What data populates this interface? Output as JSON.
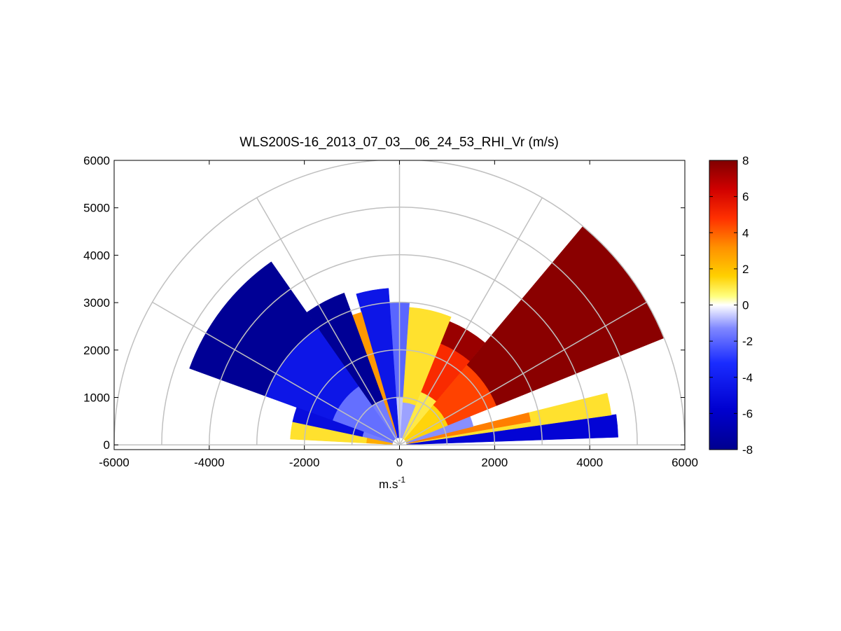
{
  "chart_data": {
    "type": "heatmap",
    "subtype": "polar-rhi-scan",
    "title": "WLS200S-16_2013_07_03__06_24_53_RHI_Vr (m/s)",
    "xlabel": "m.s",
    "xlabel_superscript": "-1",
    "ylabel": "",
    "xlim": [
      -6000,
      6000
    ],
    "ylim": [
      -100,
      6000
    ],
    "xticks": [
      "-6000",
      "-4000",
      "-2000",
      "0",
      "2000",
      "4000",
      "6000"
    ],
    "yticks": [
      "0",
      "1000",
      "2000",
      "3000",
      "4000",
      "5000",
      "6000"
    ],
    "polar_grid": {
      "ranges": [
        1000,
        2000,
        3000,
        4000,
        5000,
        6000
      ],
      "spokes_deg": [
        0,
        30,
        60,
        90,
        120,
        150,
        180
      ],
      "color": "#c0c0c0"
    },
    "colorbar": {
      "min": -8,
      "max": 8,
      "ticks": [
        "8",
        "6",
        "4",
        "2",
        "0",
        "-2",
        "-4",
        "-6",
        "-8"
      ],
      "colormap": "blue-white-red"
    },
    "sectors": [
      {
        "az_from": 2,
        "az_to": 8,
        "r_from": 150,
        "r_to": 4600,
        "v": -5.5
      },
      {
        "az_from": 8,
        "az_to": 14,
        "r_from": 150,
        "r_to": 4500,
        "v": 1.2
      },
      {
        "az_from": 10,
        "az_to": 14,
        "r_from": 200,
        "r_to": 2800,
        "v": 3.5
      },
      {
        "az_from": 14,
        "az_to": 22,
        "r_from": 150,
        "r_to": 1600,
        "v": -1.2
      },
      {
        "az_from": 22,
        "az_to": 50,
        "r_from": 150,
        "r_to": 1100,
        "v": 1.5
      },
      {
        "az_from": 22,
        "az_to": 50,
        "r_from": 1100,
        "r_to": 2200,
        "v": 4.5
      },
      {
        "az_from": 22,
        "az_to": 50,
        "r_from": 2200,
        "r_to": 6000,
        "v": 7.8
      },
      {
        "az_from": 50,
        "az_to": 68,
        "r_from": 150,
        "r_to": 1200,
        "v": 1.0
      },
      {
        "az_from": 50,
        "az_to": 68,
        "r_from": 1200,
        "r_to": 2300,
        "v": 5.0
      },
      {
        "az_from": 50,
        "az_to": 68,
        "r_from": 2300,
        "r_to": 2800,
        "v": 7.5
      },
      {
        "az_from": 68,
        "az_to": 86,
        "r_from": 150,
        "r_to": 900,
        "v": -1.0
      },
      {
        "az_from": 68,
        "az_to": 86,
        "r_from": 900,
        "r_to": 2900,
        "v": 1.2
      },
      {
        "az_from": 86,
        "az_to": 94,
        "r_from": 150,
        "r_to": 1000,
        "v": -0.6
      },
      {
        "az_from": 86,
        "az_to": 94,
        "r_from": 1000,
        "r_to": 3000,
        "v": -2.0
      },
      {
        "az_from": 94,
        "az_to": 106,
        "r_from": 150,
        "r_to": 3300,
        "v": -4.5
      },
      {
        "az_from": 106,
        "az_to": 110,
        "r_from": 200,
        "r_to": 2900,
        "v": 3.0
      },
      {
        "az_from": 110,
        "az_to": 125,
        "r_from": 150,
        "r_to": 1000,
        "v": -1.5
      },
      {
        "az_from": 110,
        "az_to": 125,
        "r_from": 1000,
        "r_to": 3400,
        "v": -7.8
      },
      {
        "az_from": 125,
        "az_to": 160,
        "r_from": 150,
        "r_to": 1500,
        "v": -1.8
      },
      {
        "az_from": 125,
        "az_to": 160,
        "r_from": 1500,
        "r_to": 3000,
        "v": -4.5
      },
      {
        "az_from": 125,
        "az_to": 160,
        "r_from": 3000,
        "r_to": 4700,
        "v": -7.8
      },
      {
        "az_from": 160,
        "az_to": 168,
        "r_from": 150,
        "r_to": 800,
        "v": -1.5
      },
      {
        "az_from": 160,
        "az_to": 168,
        "r_from": 800,
        "r_to": 2300,
        "v": -5.0
      },
      {
        "az_from": 168,
        "az_to": 177,
        "r_from": 150,
        "r_to": 700,
        "v": 2.5
      },
      {
        "az_from": 168,
        "az_to": 177,
        "r_from": 700,
        "r_to": 2300,
        "v": 1.2
      }
    ]
  }
}
